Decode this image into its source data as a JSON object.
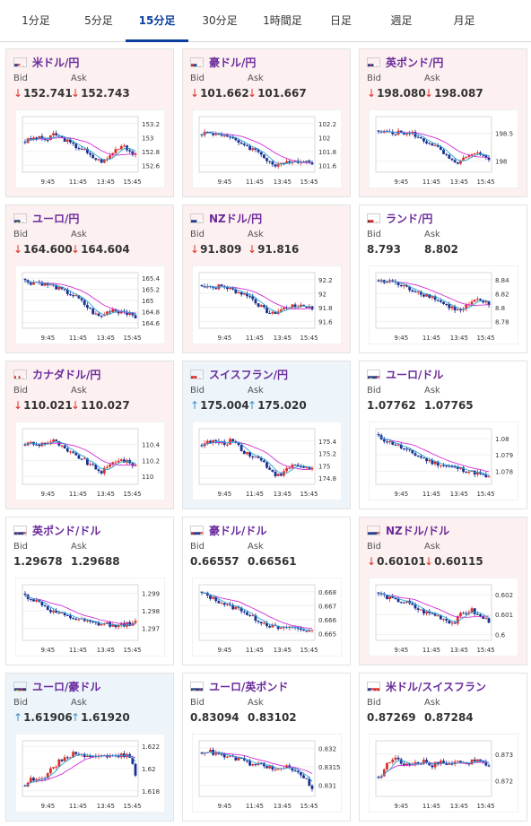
{
  "tabs": [
    "1分足",
    "5分足",
    "15分足",
    "30分足",
    "1時間足",
    "日足",
    "週足",
    "月足"
  ],
  "active_tab": "15分足",
  "labels": {
    "bid": "Bid",
    "ask": "Ask"
  },
  "x_ticks": [
    "9:45",
    "11:45",
    "13:45",
    "15:45"
  ],
  "colors": {
    "down_bg": "#fdf0f0",
    "up_bg": "#edf5fb",
    "candle_up": "#d9302b",
    "candle_down": "#1a2f8f",
    "ma_short": "#2aa5d6",
    "ma_long": "#d12cd6",
    "arrow_down": "#d9302b",
    "arrow_up": "#3a8fc9"
  },
  "pairs": [
    {
      "name": "米ドル/円",
      "bid": "152.741",
      "ask": "152.743",
      "dir": "down",
      "flag": "us-jp",
      "yticks": [
        "153.2",
        "153",
        "152.8",
        "152.6"
      ],
      "ymin": 152.5,
      "ymax": 153.3
    },
    {
      "name": "豪ドル/円",
      "bid": "101.662",
      "ask": "101.667",
      "dir": "down",
      "flag": "au-jp",
      "yticks": [
        "102.2",
        "102",
        "101.8",
        "101.6"
      ],
      "ymin": 101.5,
      "ymax": 102.3
    },
    {
      "name": "英ポンド/円",
      "bid": "198.080",
      "ask": "198.087",
      "dir": "down",
      "flag": "gb-jp",
      "yticks": [
        "198.5",
        "198"
      ],
      "ymin": 197.8,
      "ymax": 198.8
    },
    {
      "name": "ユーロ/円",
      "bid": "164.600",
      "ask": "164.604",
      "dir": "down",
      "flag": "eu-jp",
      "yticks": [
        "165.4",
        "165.2",
        "165",
        "164.8",
        "164.6"
      ],
      "ymin": 164.5,
      "ymax": 165.5
    },
    {
      "name": "NZドル/円",
      "bid": "91.809",
      "ask": "91.816",
      "dir": "down",
      "flag": "nz-jp",
      "yticks": [
        "92.2",
        "92",
        "91.8",
        "91.6"
      ],
      "ymin": 91.5,
      "ymax": 92.3
    },
    {
      "name": "ランド/円",
      "bid": "8.793",
      "ask": "8.802",
      "dir": "none",
      "flag": "za-jp",
      "yticks": [
        "8.84",
        "8.82",
        "8.8",
        "8.78"
      ],
      "ymin": 8.77,
      "ymax": 8.85
    },
    {
      "name": "カナダドル/円",
      "bid": "110.021",
      "ask": "110.027",
      "dir": "down",
      "flag": "ca-jp",
      "yticks": [
        "110.4",
        "110.2",
        "110"
      ],
      "ymin": 109.9,
      "ymax": 110.6
    },
    {
      "name": "スイスフラン/円",
      "bid": "175.004",
      "ask": "175.020",
      "dir": "up",
      "flag": "ch-jp",
      "yticks": [
        "175.4",
        "175.2",
        "175",
        "174.8"
      ],
      "ymin": 174.7,
      "ymax": 175.6
    },
    {
      "name": "ユーロ/ドル",
      "bid": "1.07762",
      "ask": "1.07765",
      "dir": "none",
      "flag": "eu-us",
      "yticks": [
        "1.08",
        "1.079",
        "1.078"
      ],
      "ymin": 1.0772,
      "ymax": 1.0806
    },
    {
      "name": "英ポンド/ドル",
      "bid": "1.29678",
      "ask": "1.29688",
      "dir": "none",
      "flag": "gb-us",
      "yticks": [
        "1.299",
        "1.298",
        "1.297"
      ],
      "ymin": 1.2963,
      "ymax": 1.2995
    },
    {
      "name": "豪ドル/ドル",
      "bid": "0.66557",
      "ask": "0.66561",
      "dir": "none",
      "flag": "au-us",
      "yticks": [
        "0.668",
        "0.667",
        "0.666",
        "0.665"
      ],
      "ymin": 0.6645,
      "ymax": 0.6685
    },
    {
      "name": "NZドル/ドル",
      "bid": "0.60101",
      "ask": "0.60115",
      "dir": "down",
      "flag": "nz-us",
      "yticks": [
        "0.602",
        "0.601",
        "0.6"
      ],
      "ymin": 0.5997,
      "ymax": 0.6025
    },
    {
      "name": "ユーロ/豪ドル",
      "bid": "1.61906",
      "ask": "1.61920",
      "dir": "up",
      "flag": "eu-au",
      "yticks": [
        "1.622",
        "1.62",
        "1.618"
      ],
      "ymin": 1.6175,
      "ymax": 1.6225
    },
    {
      "name": "ユーロ/英ポンド",
      "bid": "0.83094",
      "ask": "0.83102",
      "dir": "none",
      "flag": "eu-gb",
      "yticks": [
        "0.832",
        "0.8315",
        "0.831"
      ],
      "ymin": 0.8307,
      "ymax": 0.8322
    },
    {
      "name": "米ドル/スイスフラン",
      "bid": "0.87269",
      "ask": "0.87284",
      "dir": "none",
      "flag": "us-ch",
      "yticks": [
        "0.873",
        "0.872"
      ],
      "ymin": 0.8714,
      "ymax": 0.8735
    }
  ]
}
